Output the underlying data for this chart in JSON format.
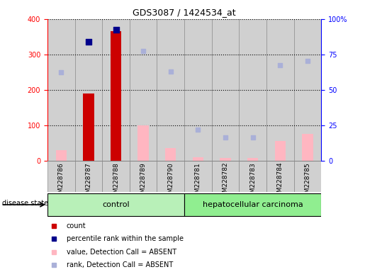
{
  "title": "GDS3087 / 1424534_at",
  "samples": [
    "GSM228786",
    "GSM228787",
    "GSM228788",
    "GSM228789",
    "GSM228790",
    "GSM228781",
    "GSM228782",
    "GSM228783",
    "GSM228784",
    "GSM228785"
  ],
  "count_values": [
    0,
    190,
    365,
    0,
    0,
    0,
    0,
    0,
    0,
    0
  ],
  "percentile_values": [
    null,
    335,
    370,
    null,
    null,
    null,
    null,
    null,
    null,
    null
  ],
  "value_absent": [
    30,
    null,
    null,
    100,
    35,
    10,
    8,
    8,
    55,
    75
  ],
  "rank_absent": [
    250,
    null,
    null,
    310,
    252,
    88,
    65,
    65,
    270,
    282
  ],
  "ylim_left": [
    0,
    400
  ],
  "ylim_right": [
    0,
    100
  ],
  "yticks_left": [
    0,
    100,
    200,
    300,
    400
  ],
  "yticks_right": [
    0,
    25,
    50,
    75,
    100
  ],
  "bar_color_count": "#cc0000",
  "bar_color_value_absent": "#ffb6c1",
  "dot_color_percentile": "#00008b",
  "dot_color_rank_absent": "#aab0d8",
  "control_color": "#b8f0b8",
  "carcinoma_color": "#90ee90",
  "n_control": 5,
  "legend_items": [
    {
      "label": "count",
      "color": "#cc0000"
    },
    {
      "label": "percentile rank within the sample",
      "color": "#00008b"
    },
    {
      "label": "value, Detection Call = ABSENT",
      "color": "#ffb6c1"
    },
    {
      "label": "rank, Detection Call = ABSENT",
      "color": "#aab0d8"
    }
  ],
  "col_bg_color": "#d0d0d0",
  "col_border_color": "#888888"
}
